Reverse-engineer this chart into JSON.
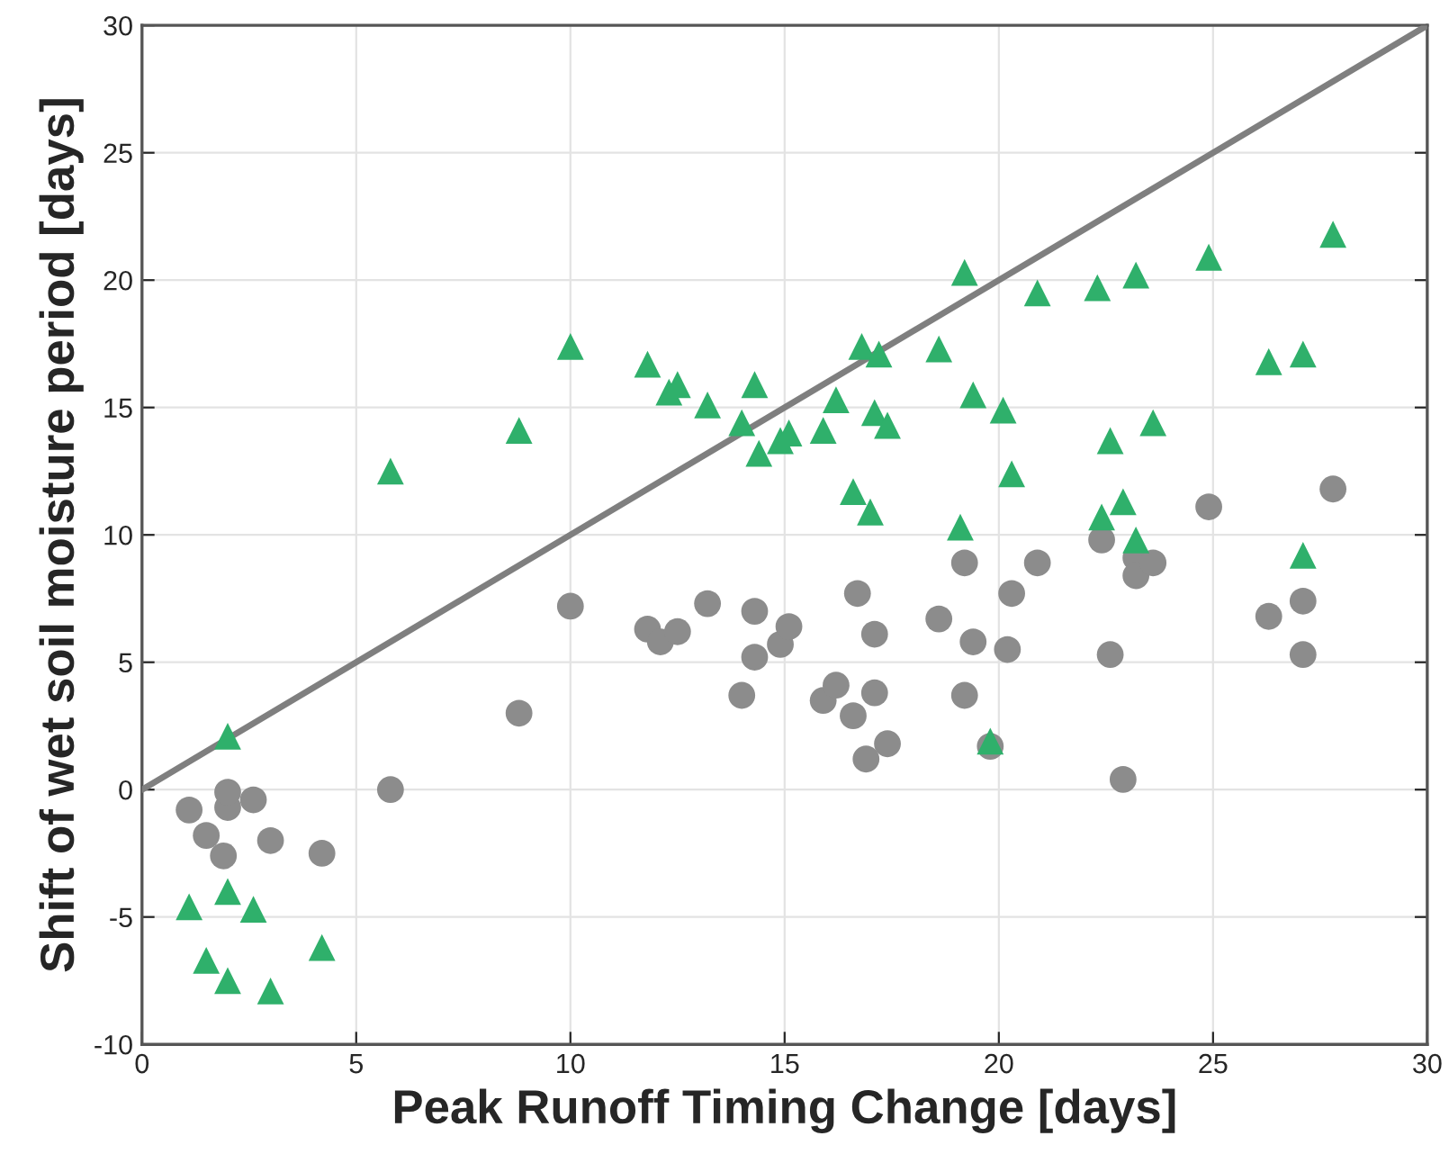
{
  "chart_data": {
    "type": "scatter",
    "xlabel": "Peak Runoff Timing Change [days]",
    "ylabel": "Shift of wet soil moisture period [days]",
    "xlim": [
      0,
      30
    ],
    "ylim": [
      -10,
      30
    ],
    "xticks": [
      0,
      5,
      10,
      15,
      20,
      25,
      30
    ],
    "yticks": [
      -10,
      -5,
      0,
      5,
      10,
      15,
      20,
      25,
      30
    ],
    "grid": true,
    "series": [
      {
        "marker": "triangle",
        "color": "#2fb06b",
        "x": [
          2.0,
          1.1,
          1.5,
          2.0,
          2.0,
          2.6,
          3.0,
          4.2,
          5.8,
          8.8,
          10.0,
          11.8,
          12.3,
          12.5,
          13.2,
          14.0,
          14.3,
          14.4,
          14.9,
          15.1,
          15.9,
          16.2,
          16.6,
          16.8,
          17.0,
          17.1,
          17.2,
          17.4,
          18.6,
          19.1,
          19.2,
          19.4,
          19.8,
          20.1,
          20.3,
          20.9,
          22.3,
          22.4,
          22.6,
          22.9,
          23.2,
          23.2,
          23.6,
          24.9,
          26.3,
          27.1,
          27.1,
          27.8
        ],
        "values": [
          2.1,
          -4.6,
          -6.7,
          -4.0,
          -7.5,
          -4.7,
          -7.9,
          -6.2,
          12.5,
          14.1,
          17.4,
          16.7,
          15.6,
          15.9,
          15.1,
          14.4,
          15.9,
          13.2,
          13.7,
          14.0,
          14.1,
          15.3,
          11.7,
          17.4,
          10.9,
          14.8,
          17.1,
          14.3,
          17.3,
          10.3,
          20.3,
          15.5,
          1.9,
          14.9,
          12.4,
          19.5,
          19.7,
          10.7,
          13.7,
          11.3,
          20.2,
          9.8,
          14.4,
          20.9,
          16.8,
          17.1,
          9.2,
          21.8
        ]
      },
      {
        "marker": "circle",
        "color": "#8c8c8c",
        "x": [
          1.1,
          1.5,
          1.9,
          2.0,
          2.0,
          2.6,
          3.0,
          4.2,
          5.8,
          8.8,
          10.0,
          11.8,
          12.1,
          12.5,
          13.2,
          14.0,
          14.3,
          14.3,
          14.9,
          15.1,
          15.9,
          16.2,
          16.6,
          16.7,
          16.9,
          17.1,
          17.1,
          17.4,
          18.6,
          19.2,
          19.2,
          19.4,
          19.8,
          20.2,
          20.3,
          20.9,
          22.4,
          22.6,
          22.9,
          23.2,
          23.2,
          23.6,
          24.9,
          26.3,
          27.1,
          27.1,
          27.8
        ],
        "values": [
          -0.8,
          -1.8,
          -2.6,
          -0.7,
          -0.1,
          -0.4,
          -2.0,
          -2.5,
          0.0,
          3.0,
          7.2,
          6.3,
          5.8,
          6.2,
          7.3,
          3.7,
          7.0,
          5.2,
          5.7,
          6.4,
          3.5,
          4.1,
          2.9,
          7.7,
          1.2,
          6.1,
          3.8,
          1.8,
          6.7,
          8.9,
          3.7,
          5.8,
          1.7,
          5.5,
          7.7,
          8.9,
          9.8,
          5.3,
          0.4,
          9.1,
          8.4,
          8.9,
          11.1,
          6.8,
          7.4,
          5.3,
          11.8
        ]
      },
      {
        "type": "line",
        "marker": "none",
        "line_style": "solid",
        "color": "#7f7f7f",
        "x": [
          0,
          30
        ],
        "values": [
          0,
          30
        ]
      }
    ]
  }
}
